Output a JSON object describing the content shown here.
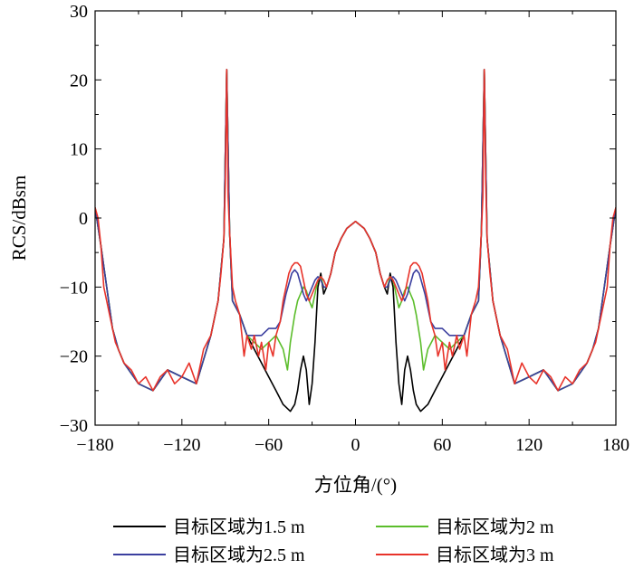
{
  "chart_data": {
    "type": "line",
    "title": "",
    "xlabel": "方位角/(°)",
    "ylabel": "RCS/dBsm",
    "xlim": [
      -180,
      180
    ],
    "ylim": [
      -30,
      30
    ],
    "xticks": [
      -180,
      -120,
      -60,
      0,
      60,
      120,
      180
    ],
    "yticks": [
      -30,
      -20,
      -10,
      0,
      10,
      20,
      30
    ],
    "grid": false,
    "legend_position": "bottom",
    "series": [
      {
        "name": "目标区域为1.5 m",
        "color": "#000000",
        "x": [
          -180,
          -176,
          -172,
          -168,
          -164,
          -160,
          -150,
          -140,
          -130,
          -120,
          -110,
          -100,
          -95,
          -91,
          -89,
          -87,
          -85,
          -80,
          -75,
          -70,
          -65,
          -60,
          -55,
          -50,
          -45,
          -42,
          -40,
          -38,
          -36,
          -34,
          -32,
          -30,
          -28,
          -26,
          -24,
          -22,
          -20,
          -17,
          -14,
          -10,
          -6,
          -3,
          0,
          3,
          6,
          10,
          14,
          17,
          20,
          22,
          24,
          26,
          28,
          30,
          32,
          34,
          36,
          38,
          40,
          42,
          45,
          50,
          55,
          60,
          65,
          70,
          75,
          80,
          85,
          87,
          89,
          91,
          95,
          100,
          110,
          120,
          130,
          140,
          150,
          160,
          164,
          168,
          172,
          176,
          180
        ],
        "values": [
          1.5,
          -4,
          -10,
          -16,
          -19,
          -21,
          -24,
          -25,
          -22,
          -23,
          -24,
          -17,
          -12,
          -3,
          21.5,
          -2,
          -12,
          -14,
          -17,
          -19,
          -21,
          -23,
          -25,
          -27,
          -28,
          -27,
          -25,
          -22,
          -20,
          -22,
          -27,
          -24,
          -18,
          -10,
          -8,
          -11,
          -10,
          -8,
          -5,
          -3,
          -1.5,
          -1,
          -0.5,
          -1,
          -1.5,
          -3,
          -5,
          -8,
          -10,
          -11,
          -8,
          -10,
          -18,
          -24,
          -27,
          -22,
          -20,
          -22,
          -25,
          -27,
          -28,
          -27,
          -25,
          -23,
          -21,
          -19,
          -17,
          -14,
          -12,
          -2,
          21.5,
          -3,
          -12,
          -17,
          -24,
          -23,
          -22,
          -25,
          -24,
          -21,
          -19,
          -16,
          -10,
          -4,
          1.5
        ]
      },
      {
        "name": "目标区域为2 m",
        "color": "#5bbd2b",
        "x": [
          -180,
          -176,
          -172,
          -168,
          -164,
          -160,
          -150,
          -140,
          -130,
          -120,
          -110,
          -100,
          -95,
          -91,
          -89,
          -87,
          -85,
          -80,
          -75,
          -70,
          -65,
          -60,
          -55,
          -50,
          -47,
          -45,
          -42,
          -40,
          -38,
          -36,
          -34,
          -32,
          -30,
          -28,
          -26,
          -24,
          -22,
          -20,
          -17,
          -14,
          -10,
          -6,
          -3,
          0,
          3,
          6,
          10,
          14,
          17,
          20,
          22,
          24,
          26,
          28,
          30,
          32,
          34,
          36,
          38,
          40,
          42,
          45,
          47,
          50,
          55,
          60,
          65,
          70,
          75,
          80,
          85,
          87,
          89,
          91,
          95,
          100,
          110,
          120,
          130,
          140,
          150,
          160,
          164,
          168,
          172,
          176,
          180
        ],
        "values": [
          1.5,
          -4,
          -10,
          -16,
          -19,
          -21,
          -24,
          -25,
          -22,
          -23,
          -24,
          -17,
          -12,
          -3,
          21.5,
          -2,
          -12,
          -14,
          -17,
          -18,
          -19,
          -18,
          -17,
          -19,
          -22,
          -18,
          -14,
          -12,
          -11,
          -10,
          -10.5,
          -12,
          -13,
          -11,
          -9,
          -8.5,
          -10,
          -10,
          -8,
          -5,
          -3,
          -1.5,
          -1,
          -0.5,
          -1,
          -1.5,
          -3,
          -5,
          -8,
          -10,
          -10,
          -8.5,
          -9,
          -11,
          -13,
          -12,
          -10.5,
          -10,
          -11,
          -12,
          -14,
          -18,
          -22,
          -19,
          -17,
          -18,
          -19,
          -18,
          -17,
          -14,
          -12,
          -2,
          21.5,
          -3,
          -12,
          -17,
          -24,
          -23,
          -22,
          -25,
          -24,
          -21,
          -19,
          -16,
          -10,
          -4,
          1.5
        ]
      },
      {
        "name": "目标区域为2.5 m",
        "color": "#3b3f9f",
        "x": [
          -180,
          -176,
          -172,
          -168,
          -164,
          -160,
          -150,
          -140,
          -130,
          -120,
          -110,
          -100,
          -95,
          -91,
          -89,
          -87,
          -85,
          -80,
          -75,
          -70,
          -65,
          -60,
          -55,
          -52,
          -50,
          -48,
          -46,
          -44,
          -42,
          -40,
          -38,
          -36,
          -34,
          -32,
          -30,
          -28,
          -26,
          -24,
          -22,
          -20,
          -17,
          -14,
          -10,
          -6,
          -3,
          0,
          3,
          6,
          10,
          14,
          17,
          20,
          22,
          24,
          26,
          28,
          30,
          32,
          34,
          36,
          38,
          40,
          42,
          44,
          46,
          48,
          50,
          52,
          55,
          60,
          65,
          70,
          75,
          80,
          85,
          87,
          89,
          91,
          95,
          100,
          110,
          120,
          130,
          140,
          150,
          160,
          164,
          168,
          172,
          176,
          180
        ],
        "values": [
          1.5,
          -4,
          -10,
          -16,
          -19,
          -21,
          -24,
          -25,
          -22,
          -23,
          -24,
          -17,
          -12,
          -3,
          21.5,
          -2,
          -12,
          -14,
          -17,
          -17,
          -17,
          -16,
          -16,
          -15,
          -13,
          -11,
          -9.5,
          -8,
          -7.5,
          -8,
          -9.5,
          -11,
          -12,
          -11,
          -10,
          -9,
          -8.5,
          -9,
          -10,
          -10,
          -8,
          -5,
          -3,
          -1.5,
          -1,
          -0.5,
          -1,
          -1.5,
          -3,
          -5,
          -8,
          -10,
          -10,
          -9,
          -8.5,
          -9,
          -10,
          -11,
          -12,
          -11,
          -9.5,
          -8,
          -7.5,
          -8,
          -9.5,
          -11,
          -13,
          -15,
          -16,
          -16,
          -17,
          -17,
          -17,
          -14,
          -12,
          -2,
          21.5,
          -3,
          -12,
          -17,
          -24,
          -23,
          -22,
          -25,
          -24,
          -21,
          -19,
          -16,
          -10,
          -4,
          1.5
        ]
      },
      {
        "name": "目标区域为3 m",
        "color": "#e8332a",
        "x": [
          -180,
          -178,
          -176,
          -174,
          -172,
          -170,
          -168,
          -166,
          -164,
          -162,
          -160,
          -155,
          -150,
          -145,
          -140,
          -135,
          -130,
          -125,
          -120,
          -115,
          -110,
          -105,
          -100,
          -97,
          -95,
          -93,
          -91,
          -90,
          -89,
          -88,
          -87,
          -85,
          -83,
          -80,
          -77,
          -75,
          -72,
          -70,
          -67,
          -65,
          -62,
          -60,
          -57,
          -55,
          -52,
          -50,
          -48,
          -46,
          -44,
          -42,
          -40,
          -38,
          -36,
          -34,
          -32,
          -30,
          -28,
          -26,
          -24,
          -22,
          -20,
          -17,
          -14,
          -10,
          -6,
          -3,
          0,
          3,
          6,
          10,
          14,
          17,
          20,
          22,
          24,
          26,
          28,
          30,
          32,
          34,
          36,
          38,
          40,
          42,
          44,
          46,
          48,
          50,
          52,
          55,
          57,
          60,
          62,
          65,
          67,
          70,
          72,
          75,
          77,
          80,
          83,
          85,
          87,
          88,
          89,
          90,
          91,
          93,
          95,
          97,
          100,
          105,
          110,
          115,
          120,
          125,
          130,
          135,
          140,
          145,
          150,
          155,
          160,
          162,
          164,
          166,
          168,
          170,
          172,
          174,
          176,
          178,
          180
        ],
        "values": [
          1.5,
          0,
          -4,
          -10,
          -12,
          -14,
          -16,
          -18,
          -19,
          -20,
          -21,
          -22,
          -24,
          -23,
          -25,
          -23,
          -22,
          -24,
          -23,
          -21,
          -24,
          -19,
          -17,
          -14,
          -12,
          -8,
          -3,
          5,
          21.5,
          3,
          -2,
          -10,
          -12,
          -14,
          -20,
          -17,
          -19,
          -17,
          -20,
          -18,
          -22,
          -18,
          -20,
          -17,
          -15,
          -12,
          -10,
          -8,
          -7,
          -6.5,
          -6.5,
          -7,
          -9,
          -11,
          -12,
          -11,
          -10,
          -9,
          -8.5,
          -9,
          -10,
          -8,
          -5,
          -3,
          -1.5,
          -1,
          -0.5,
          -1,
          -1.5,
          -3,
          -5,
          -8,
          -10,
          -9,
          -8.5,
          -9,
          -10,
          -11,
          -12,
          -11,
          -9,
          -7,
          -6.5,
          -6.5,
          -7,
          -8,
          -10,
          -12,
          -15,
          -17,
          -20,
          -18,
          -22,
          -18,
          -20,
          -17,
          -19,
          -17,
          -20,
          -14,
          -12,
          -10,
          -2,
          3,
          21.5,
          5,
          -3,
          -8,
          -12,
          -14,
          -17,
          -19,
          -24,
          -21,
          -23,
          -24,
          -22,
          -23,
          -25,
          -23,
          -24,
          -22,
          -21,
          -20,
          -19,
          -18,
          -16,
          -14,
          -12,
          -10,
          -4,
          0,
          1.5
        ]
      }
    ]
  }
}
